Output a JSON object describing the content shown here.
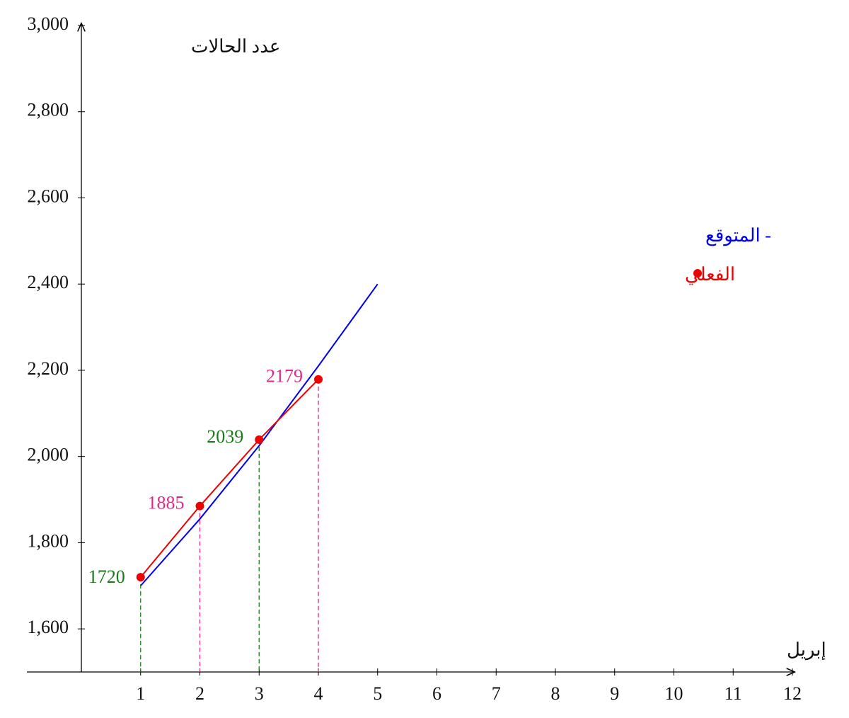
{
  "chart_data": {
    "type": "line",
    "x_label": "إبريل",
    "y_label": "عدد الحالات",
    "xlim": [
      0,
      12
    ],
    "xticks": [
      1,
      2,
      3,
      4,
      5,
      6,
      7,
      8,
      9,
      10,
      11,
      12
    ],
    "ylim": [
      1500,
      3000
    ],
    "yticks": [
      {
        "value": 1600,
        "label": "1,600"
      },
      {
        "value": 1800,
        "label": "1,800"
      },
      {
        "value": 2000,
        "label": "2,000"
      },
      {
        "value": 2200,
        "label": "2,200"
      },
      {
        "value": 2400,
        "label": "2,400"
      },
      {
        "value": 2600,
        "label": "2,600"
      },
      {
        "value": 2800,
        "label": "2,800"
      },
      {
        "value": 3000,
        "label": "3,000"
      }
    ],
    "legend": "upper-right",
    "series": [
      {
        "name": "- المتوقع",
        "color": "#0000ee",
        "x": [
          1,
          2,
          3,
          4,
          5
        ],
        "values": [
          1700,
          1855,
          2025,
          2210,
          2400
        ]
      },
      {
        "name": "الفعلي",
        "color": "#ee0000",
        "x": [
          1,
          2,
          3,
          4
        ],
        "values": [
          1720,
          1885,
          2039,
          2179
        ],
        "markers": true,
        "label_colors": [
          "#1a7a1a",
          "#e0288a",
          "#1a7a1a",
          "#e0288a"
        ]
      }
    ]
  }
}
